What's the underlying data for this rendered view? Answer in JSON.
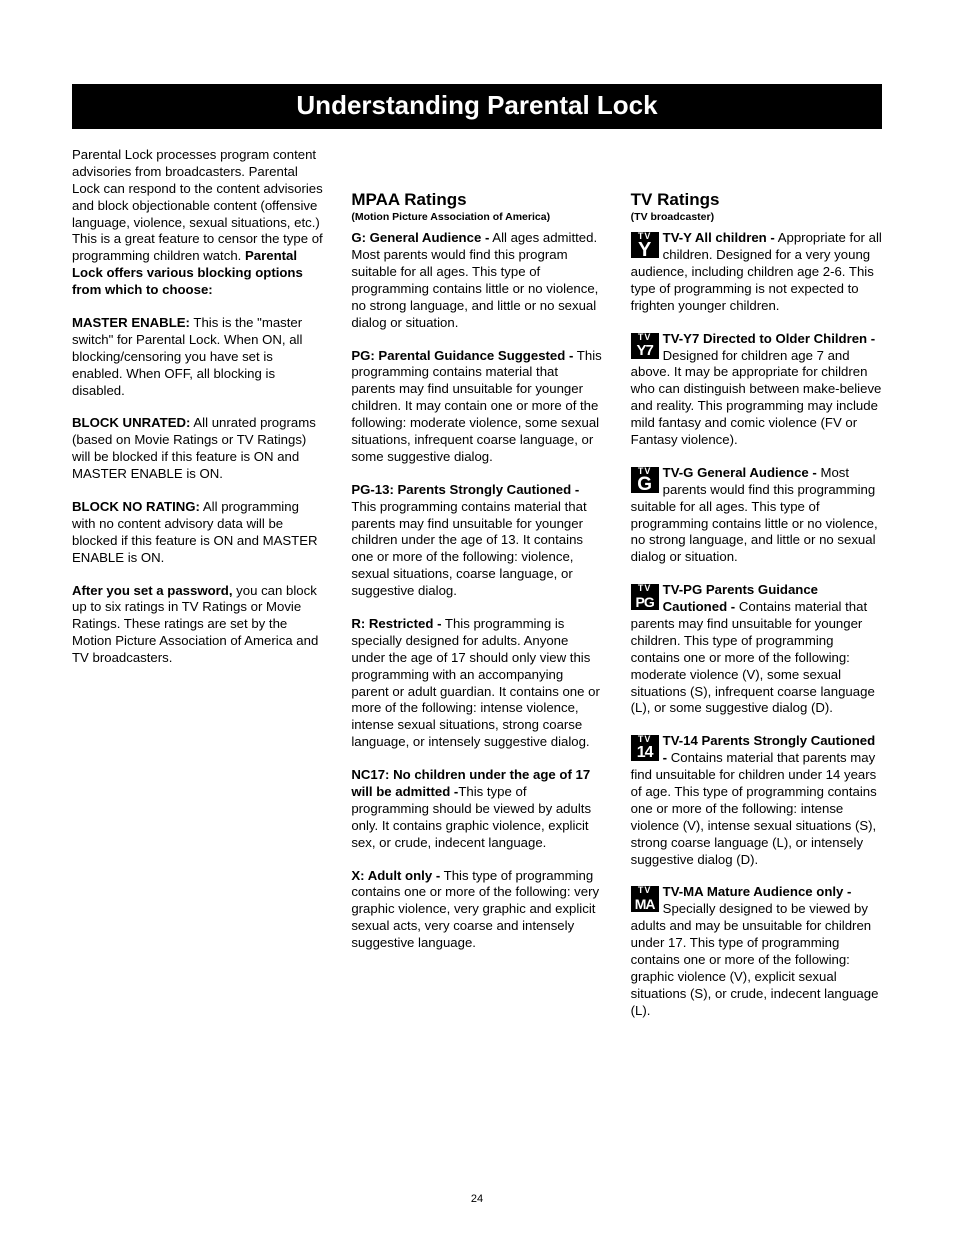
{
  "page_number": "24",
  "title": "Understanding Parental Lock",
  "col1": {
    "intro": "Parental Lock processes program content advisories from broadcasters. Parental Lock can respond to the content advisories and block objectionable content (offensive language, violence, sexual situations, etc.) This is a great feature to censor the type of programming children watch.",
    "intro_bold": "Parental Lock offers various blocking options from which to choose:",
    "master_label": "MASTER ENABLE:",
    "master_text": " This is the \"master switch\" for Parental Lock. When ON, all blocking/censoring you have set is enabled. When OFF, all blocking is disabled.",
    "unrated_label": "BLOCK UNRATED:",
    "unrated_text": " All unrated programs (based on Movie Ratings or TV Ratings) will be blocked if this feature is ON and MASTER ENABLE is ON.",
    "norating_label": "BLOCK NO RATING:",
    "norating_text": " All programming with no content advisory data will be blocked if this feature is ON and MASTER ENABLE is ON.",
    "password_label": "After you set a password,",
    "password_text": " you can block up to six ratings in TV Ratings or Movie Ratings. These ratings are set by the Motion Picture Association of America and TV broadcasters."
  },
  "col2": {
    "heading": "MPAA Ratings",
    "subheading": "(Motion Picture Association of America)",
    "g_label": "G: General Audience -",
    "g_text": " All ages admitted. Most parents would find this program suitable for all ages. This type of programming contains little or no violence, no strong language, and little or no sexual dialog or situation.",
    "pg_label": "PG: Parental Guidance Suggested -",
    "pg_text": " This programming contains material that parents may find unsuitable for younger children. It may contain one or more of the following: moderate violence, some sexual situations, infrequent coarse language, or some suggestive dialog.",
    "pg13_label": "PG-13: Parents Strongly Cautioned -",
    "pg13_text": " This programming contains material that parents may find unsuitable for younger children under the age of 13. It contains one or more of the following: violence, sexual situations, coarse language, or suggestive dialog.",
    "r_label": "R: Restricted -",
    "r_text": " This programming is specially designed for adults. Anyone under the age of 17 should only view this programming with an accompanying parent or adult guardian. It contains one or more of the following: intense violence, intense sexual situations, strong coarse language, or intensely suggestive dialog.",
    "nc17_label": "NC17: No children under the age of 17 will be admitted -",
    "nc17_text": "This type of programming should be viewed by adults only. It contains graphic violence, explicit sex, or crude, indecent language.",
    "x_label": "X: Adult only -",
    "x_text": " This type of programming contains one or more of the following: very graphic violence, very graphic and explicit sexual acts, very coarse and intensely suggestive language."
  },
  "col3": {
    "heading": "TV Ratings",
    "subheading": "(TV broadcaster)",
    "icons": {
      "tv": "TV",
      "y": "Y",
      "y7": "Y7",
      "g": "G",
      "pg": "PG",
      "n14": "14",
      "ma": "MA"
    },
    "tvy_label": "TV-Y All children -",
    "tvy_text": " Appropriate for all children. Designed for a very young audience, including children age 2-6. This type of programming is not expected to frighten younger children.",
    "tvy7_label": "TV-Y7 Directed to Older Children -",
    "tvy7_text": " Designed for children age 7 and above. It may be appropriate for children who can distinguish between make-believe and reality. This programming may include mild fantasy and comic violence (FV or Fantasy violence).",
    "tvg_label": "TV-G General Audience -",
    "tvg_text": " Most parents would find this programming suitable for all ages. This type of programming contains little or no violence, no strong language, and little or no sexual dialog or situation.",
    "tvpg_label": "TV-PG Parents Guidance Cautioned -",
    "tvpg_text": " Contains material that parents may find unsuitable for younger children. This type of programming contains one or more of the following: moderate violence (V), some sexual situations (S), infrequent coarse language (L), or some suggestive dialog (D).",
    "tv14_label": "TV-14 Parents Strongly Cautioned",
    "tv14_dash": " - ",
    "tv14_text": "Contains material that parents may find unsuitable for children under 14 years of age. This type of programming contains one or more of the following: intense violence (V), intense sexual situations (S), strong coarse language (L), or intensely suggestive dialog (D).",
    "tvma_label": "TV-MA Mature Audience only -",
    "tvma_text": " Specially designed to be viewed by adults and may be unsuitable for children under 17. This type of programming contains one or more of the following: graphic violence (V), explicit sexual situations (S), or crude, indecent language (L)."
  }
}
